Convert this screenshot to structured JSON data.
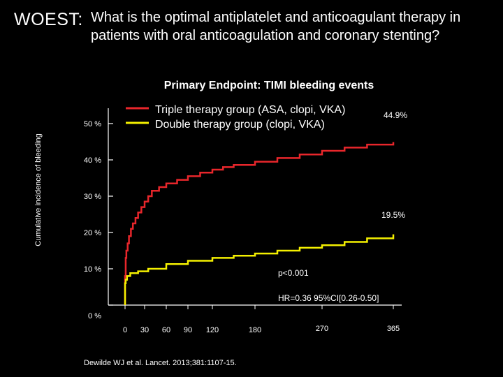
{
  "header": {
    "abbreviation": "WOEST:",
    "question": "What is the optimal antiplatelet and anticoagulant therapy in patients with oral anticoagulation and coronary stenting?"
  },
  "citation": "Dewilde WJ et al. Lancet. 2013;381:1107-15.",
  "colors": {
    "triple": "#e8262b",
    "double": "#f4f000",
    "axis": "#ffffff",
    "background": "#000000"
  },
  "chart_data": {
    "type": "line",
    "title": "Primary Endpoint: TIMI bleeding events",
    "ylabel": "Cumulative incidence of bleeding",
    "xlabel": "",
    "x_ticks": [
      0,
      30,
      60,
      90,
      120,
      180,
      270,
      365
    ],
    "y_ticks": [
      {
        "value": 0,
        "label": "0 %"
      },
      {
        "value": 10,
        "label": "10 %"
      },
      {
        "value": 20,
        "label": "20 %"
      },
      {
        "value": 30,
        "label": "30 %"
      },
      {
        "value": 40,
        "label": "40 %"
      },
      {
        "value": 50,
        "label": "50 %"
      }
    ],
    "xlim": [
      0,
      365
    ],
    "ylim": [
      0,
      50
    ],
    "grid": false,
    "legend_position": "top",
    "series": [
      {
        "name": "Triple therapy group (ASA, clopi, VKA)",
        "color": "#e8262b",
        "end_label": "44.9%",
        "points": [
          [
            0,
            0
          ],
          [
            0,
            8
          ],
          [
            1,
            13
          ],
          [
            2,
            15
          ],
          [
            4,
            17
          ],
          [
            6,
            19
          ],
          [
            9,
            21
          ],
          [
            12,
            22.5
          ],
          [
            16,
            24
          ],
          [
            20,
            25.5
          ],
          [
            25,
            27
          ],
          [
            30,
            28.5
          ],
          [
            35,
            30
          ],
          [
            40,
            31.5
          ],
          [
            50,
            32.5
          ],
          [
            60,
            33.5
          ],
          [
            75,
            34.5
          ],
          [
            90,
            35.5
          ],
          [
            105,
            36.5
          ],
          [
            120,
            37.3
          ],
          [
            135,
            38
          ],
          [
            150,
            38.6
          ],
          [
            180,
            39.5
          ],
          [
            210,
            40.5
          ],
          [
            240,
            41.5
          ],
          [
            270,
            42.5
          ],
          [
            300,
            43.4
          ],
          [
            330,
            44.2
          ],
          [
            365,
            44.9
          ]
        ]
      },
      {
        "name": "Double therapy group (clopi, VKA)",
        "color": "#f4f000",
        "end_label": "19.5%",
        "points": [
          [
            0,
            0
          ],
          [
            0,
            6
          ],
          [
            1,
            7
          ],
          [
            3,
            8
          ],
          [
            8,
            8.8
          ],
          [
            20,
            9.3
          ],
          [
            35,
            10
          ],
          [
            60,
            11.3
          ],
          [
            90,
            12.2
          ],
          [
            120,
            13
          ],
          [
            150,
            13.6
          ],
          [
            180,
            14.2
          ],
          [
            210,
            15
          ],
          [
            240,
            15.8
          ],
          [
            270,
            16.5
          ],
          [
            300,
            17.4
          ],
          [
            330,
            18.4
          ],
          [
            365,
            19.5
          ]
        ]
      }
    ],
    "annotations": {
      "p_value": "p<0.001",
      "hazard_ratio": "HR=0.36 95%CI[0.26-0.50]"
    }
  }
}
